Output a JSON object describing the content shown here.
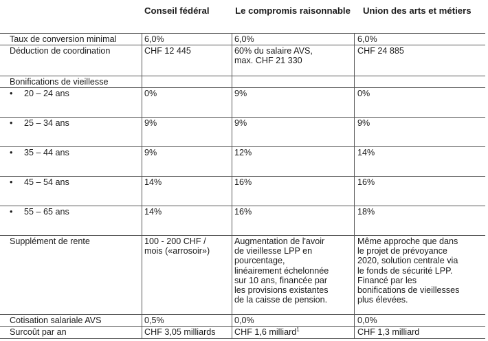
{
  "headers": [
    "Conseil fédéral",
    "Le compromis raisonnable",
    "Union des arts et métiers"
  ],
  "rows": [
    {
      "label": "Taux de conversion minimal",
      "cf": "6,0%",
      "comp": "6,0%",
      "uam": "6,0%"
    },
    {
      "label": "Déduction de coordination",
      "cf": "CHF 12 445",
      "comp": "60% du salaire AVS,\nmax. CHF 21 330",
      "uam": "CHF 24 885"
    },
    {
      "label": "Bonifications de vieillesse",
      "cf": "",
      "comp": "",
      "uam": ""
    },
    {
      "label": "20 – 24 ans",
      "bullet": "•",
      "cf": "0%",
      "comp": "9%",
      "uam": "0%"
    },
    {
      "label": "25 – 34 ans",
      "bullet": "•",
      "cf": "9%",
      "comp": "9%",
      "uam": "9%"
    },
    {
      "label": "35 – 44 ans",
      "bullet": "•",
      "cf": "9%",
      "comp": "12%",
      "uam": "14%"
    },
    {
      "label": "45 – 54 ans",
      "bullet": "•",
      "cf": "14%",
      "comp": "16%",
      "uam": "16%"
    },
    {
      "label": "55 – 65 ans",
      "bullet": "•",
      "cf": "14%",
      "comp": "16%",
      "uam": "18%"
    },
    {
      "label": "Supplément de rente",
      "cf": "100 - 200 CHF /\nmois («arrosoir»)",
      "comp": "Augmentation de l'avoir\nde vieillesse LPP en\npourcentage,\nlinéairement échelonnée\nsur 10 ans, financée par\nles provisions existantes\nde la caisse de pension.",
      "uam": "Même approche que dans\nle projet de prévoyance\n2020, solution centrale via\nle fonds de sécurité LPP.\nFinancé par les\nbonifications de vieillesses\nplus élevées."
    },
    {
      "label": "Cotisation salariale AVS",
      "cf": "0,5%",
      "comp": "0,0%",
      "uam": "0,0%"
    },
    {
      "label": "Surcoût par an",
      "cf": "CHF 3,05 milliards",
      "comp": "CHF 1,6 milliard",
      "comp_sup": "1",
      "uam": "CHF 1,3 milliard"
    }
  ]
}
